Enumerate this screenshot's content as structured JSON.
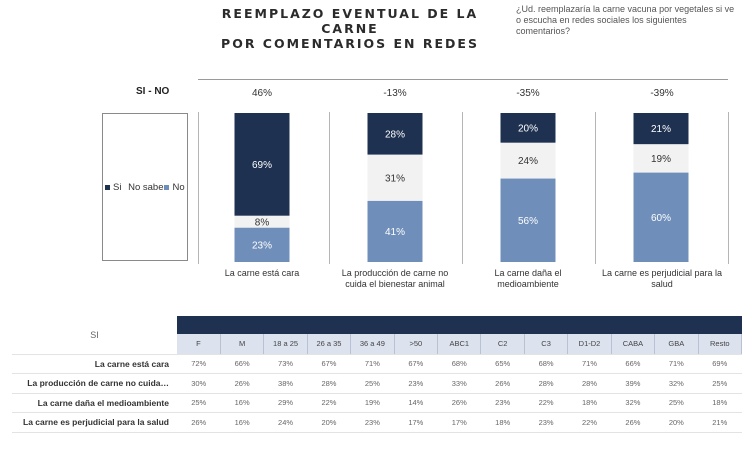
{
  "title_line1": "REEMPLAZO EVENTUAL DE LA CARNE",
  "title_line2": "POR COMENTARIOS EN REDES",
  "question": "¿Ud. reemplazaría la carne vacuna por vegetales si ve o escucha en redes sociales los siguientes comentarios?",
  "sino_label": "SI - NO",
  "legend": [
    {
      "label": "Si",
      "color": "#1f3150"
    },
    {
      "label": "No sabe",
      "color": "#f2f2f2"
    },
    {
      "label": "No",
      "color": "#6f8fba"
    }
  ],
  "chart_data": {
    "type": "bar",
    "stacked": true,
    "percent": true,
    "categories": [
      "La carne está cara",
      "La producción de carne no cuida el bienestar animal",
      "La carne daña el medioambiente",
      "La carne es perjudicial para la salud"
    ],
    "net_si_no": [
      "46%",
      "-13%",
      "-35%",
      "-39%"
    ],
    "series": [
      {
        "name": "Si",
        "values": [
          69,
          28,
          20,
          21
        ],
        "color": "#1f3150"
      },
      {
        "name": "No sabe",
        "values": [
          8,
          31,
          24,
          19
        ],
        "color": "#f2f2f2"
      },
      {
        "name": "No",
        "values": [
          23,
          41,
          56,
          60
        ],
        "color": "#6f8fba"
      }
    ],
    "legend_position": "left"
  },
  "table": {
    "corner_label": "SI",
    "columns": [
      "F",
      "M",
      "18 a 25",
      "26 a 35",
      "36 a 49",
      ">50",
      "ABC1",
      "C2",
      "C3",
      "D1-D2",
      "CABA",
      "GBA",
      "Resto"
    ],
    "rows": [
      {
        "label": "La carne está cara",
        "values": [
          "72%",
          "66%",
          "73%",
          "67%",
          "71%",
          "67%",
          "68%",
          "65%",
          "68%",
          "71%",
          "66%",
          "71%",
          "69%"
        ]
      },
      {
        "label": "La producción de carne no cuida…",
        "values": [
          "30%",
          "26%",
          "38%",
          "28%",
          "25%",
          "23%",
          "33%",
          "26%",
          "28%",
          "28%",
          "39%",
          "32%",
          "25%"
        ]
      },
      {
        "label": "La carne daña el medioambiente",
        "values": [
          "25%",
          "16%",
          "29%",
          "22%",
          "19%",
          "14%",
          "26%",
          "23%",
          "22%",
          "18%",
          "32%",
          "25%",
          "18%"
        ]
      },
      {
        "label": "La carne es perjudicial para la salud",
        "values": [
          "26%",
          "16%",
          "24%",
          "20%",
          "23%",
          "17%",
          "17%",
          "18%",
          "23%",
          "22%",
          "26%",
          "20%",
          "21%"
        ]
      }
    ]
  }
}
